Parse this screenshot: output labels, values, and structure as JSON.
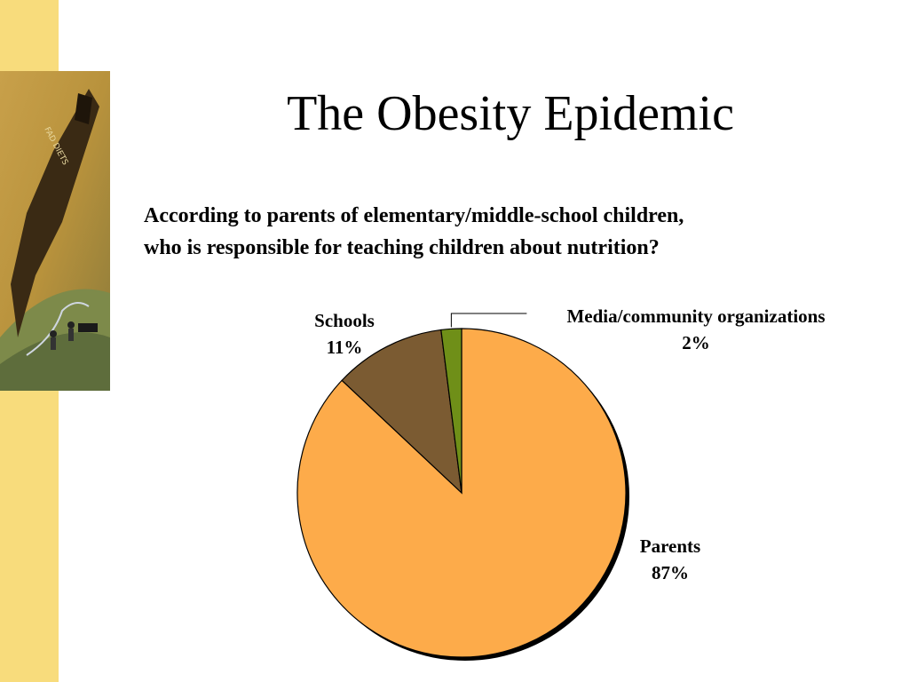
{
  "slide": {
    "title": "The Obesity Epidemic",
    "question_line1": "According to parents of elementary/middle-school children,",
    "question_line2": "who is responsible for teaching children about nutrition?"
  },
  "decor": {
    "stripe_color": "#f8dc7c",
    "art_icon": "fad-diets-illustration-icon",
    "art_text": "FAD DIETS"
  },
  "chart_data": {
    "type": "pie",
    "title": "",
    "start_angle_deg": 0,
    "direction": "clockwise",
    "slices": [
      {
        "name": "Parents",
        "value": 87,
        "label": "87%",
        "color": "#fdab4a"
      },
      {
        "name": "Schools",
        "value": 11,
        "label": "11%",
        "color": "#7b5b32"
      },
      {
        "name": "Media/community organizations",
        "value": 2,
        "label": "2%",
        "color": "#6f8f18"
      }
    ]
  }
}
